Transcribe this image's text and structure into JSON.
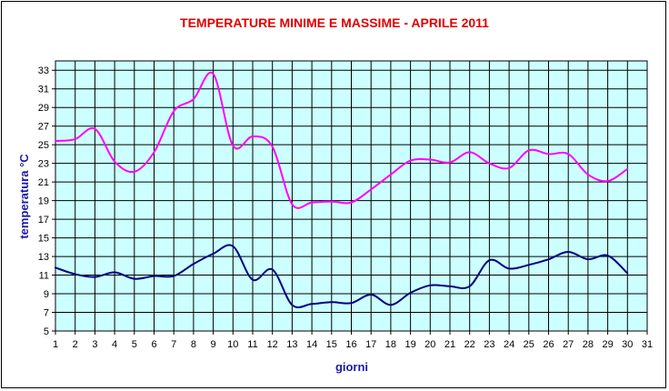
{
  "chart_data": {
    "type": "line",
    "title": "TEMPERATURE MINIME E MASSIME  -  APRILE 2011",
    "xlabel": "giorni",
    "ylabel": "temperatura °C",
    "xlim": [
      1,
      31
    ],
    "ylim": [
      5,
      34
    ],
    "x_ticks": [
      1,
      2,
      3,
      4,
      5,
      6,
      7,
      8,
      9,
      10,
      11,
      12,
      13,
      14,
      15,
      16,
      17,
      18,
      19,
      20,
      21,
      22,
      23,
      24,
      25,
      26,
      27,
      28,
      29,
      30,
      31
    ],
    "y_ticks": [
      5,
      7,
      9,
      11,
      13,
      15,
      17,
      19,
      21,
      23,
      25,
      27,
      29,
      31,
      33
    ],
    "grid": true,
    "legend": "none",
    "plot_background": "#ccffff",
    "x": [
      1,
      2,
      3,
      4,
      5,
      6,
      7,
      8,
      9,
      10,
      11,
      12,
      13,
      14,
      15,
      16,
      17,
      18,
      19,
      20,
      21,
      22,
      23,
      24,
      25,
      26,
      27,
      28,
      29,
      30
    ],
    "series": [
      {
        "color": "#ff00ff",
        "values": [
          25.4,
          25.6,
          26.7,
          23.2,
          22.1,
          24.2,
          28.6,
          29.9,
          32.6,
          24.9,
          25.9,
          24.8,
          18.6,
          18.8,
          18.9,
          18.8,
          20.2,
          21.8,
          23.3,
          23.4,
          23.1,
          24.2,
          23.0,
          22.5,
          24.4,
          24.0,
          24.0,
          21.8,
          21.1,
          22.4
        ]
      },
      {
        "color": "#000080",
        "values": [
          11.8,
          11.1,
          10.8,
          11.3,
          10.6,
          10.9,
          10.9,
          12.2,
          13.3,
          14.1,
          10.5,
          11.6,
          7.8,
          7.9,
          8.1,
          8.0,
          8.9,
          7.8,
          9.1,
          9.9,
          9.8,
          9.8,
          12.6,
          11.7,
          12.1,
          12.7,
          13.5,
          12.7,
          13.1,
          11.2
        ]
      }
    ]
  }
}
